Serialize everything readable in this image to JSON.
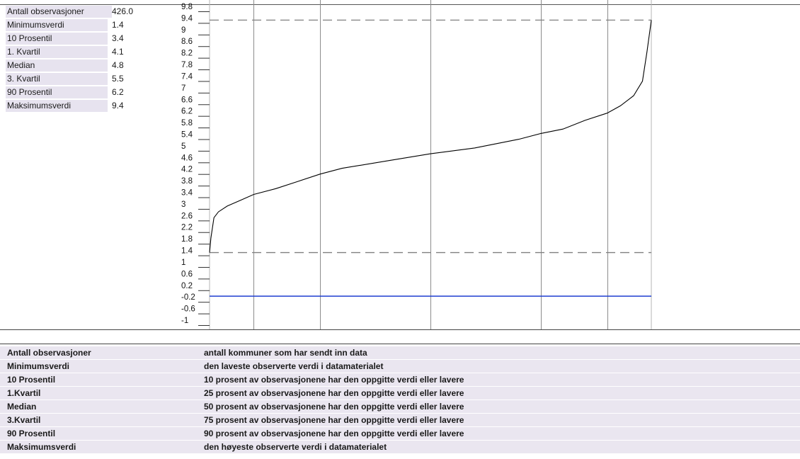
{
  "stats": [
    {
      "label": "Antall observasjoner",
      "value": "426.0"
    },
    {
      "label": "Minimumsverdi",
      "value": "1.4"
    },
    {
      "label": "10 Prosentil",
      "value": "3.4"
    },
    {
      "label": "1. Kvartil",
      "value": "4.1"
    },
    {
      "label": "Median",
      "value": "4.8"
    },
    {
      "label": "3. Kvartil",
      "value": "5.5"
    },
    {
      "label": "90 Prosentil",
      "value": "6.2"
    },
    {
      "label": "Maksimumsverdi",
      "value": "9.4"
    }
  ],
  "chart_data": {
    "type": "line",
    "y_ticks": [
      "9.8",
      "9.4",
      "9",
      "8.6",
      "8.2",
      "7.8",
      "7.4",
      "7",
      "6.6",
      "6.2",
      "5.8",
      "5.4",
      "5",
      "4.6",
      "4.2",
      "3.8",
      "3.4",
      "3",
      "2.6",
      "2.2",
      "1.8",
      "1.4",
      "1",
      "0.6",
      "0.2",
      "-0.2",
      "-0.6",
      "-1"
    ],
    "ylim": [
      -1,
      9.8
    ],
    "grid": true,
    "reference_lines": {
      "min": 1.4,
      "max": 9.4,
      "zero_line": -0.1
    },
    "vertical_guides_fraction": [
      0.1,
      0.25,
      0.5,
      0.75,
      0.9
    ],
    "colors": {
      "curve": "#000000",
      "reference": "#808080",
      "baseline": "#1f3fd0",
      "grid": "#8c8c8c"
    },
    "series": [
      {
        "x": [
          0,
          0.003,
          0.01,
          0.02,
          0.04,
          0.07,
          0.1,
          0.15,
          0.2,
          0.25,
          0.3,
          0.4,
          0.5,
          0.6,
          0.7,
          0.75,
          0.8,
          0.85,
          0.9,
          0.93,
          0.96,
          0.98,
          0.99,
          1.0
        ],
        "values": [
          1.4,
          1.9,
          2.6,
          2.8,
          3.0,
          3.2,
          3.4,
          3.6,
          3.85,
          4.1,
          4.3,
          4.55,
          4.8,
          5.0,
          5.3,
          5.5,
          5.65,
          5.95,
          6.2,
          6.45,
          6.8,
          7.3,
          8.3,
          9.4
        ]
      }
    ]
  },
  "definitions": [
    {
      "term": "Antall observasjoner",
      "desc": "antall kommuner som har sendt inn data"
    },
    {
      "term": "Minimumsverdi",
      "desc": "den laveste observerte verdi i datamaterialet"
    },
    {
      "term": "10 Prosentil",
      "desc": "10 prosent av observasjonene har den oppgitte verdi eller lavere"
    },
    {
      "term": "1.Kvartil",
      "desc": "25 prosent av observasjonene har den oppgitte verdi eller lavere"
    },
    {
      "term": "Median",
      "desc": "50 prosent av observasjonene har den oppgitte verdi eller lavere"
    },
    {
      "term": "3.Kvartil",
      "desc": "75 prosent av observasjonene har den oppgitte verdi eller lavere"
    },
    {
      "term": "90 Prosentil",
      "desc": "90 prosent av observasjonene har den oppgitte verdi eller lavere"
    },
    {
      "term": "Maksimumsverdi",
      "desc": "den høyeste observerte verdi i datamaterialet"
    }
  ]
}
